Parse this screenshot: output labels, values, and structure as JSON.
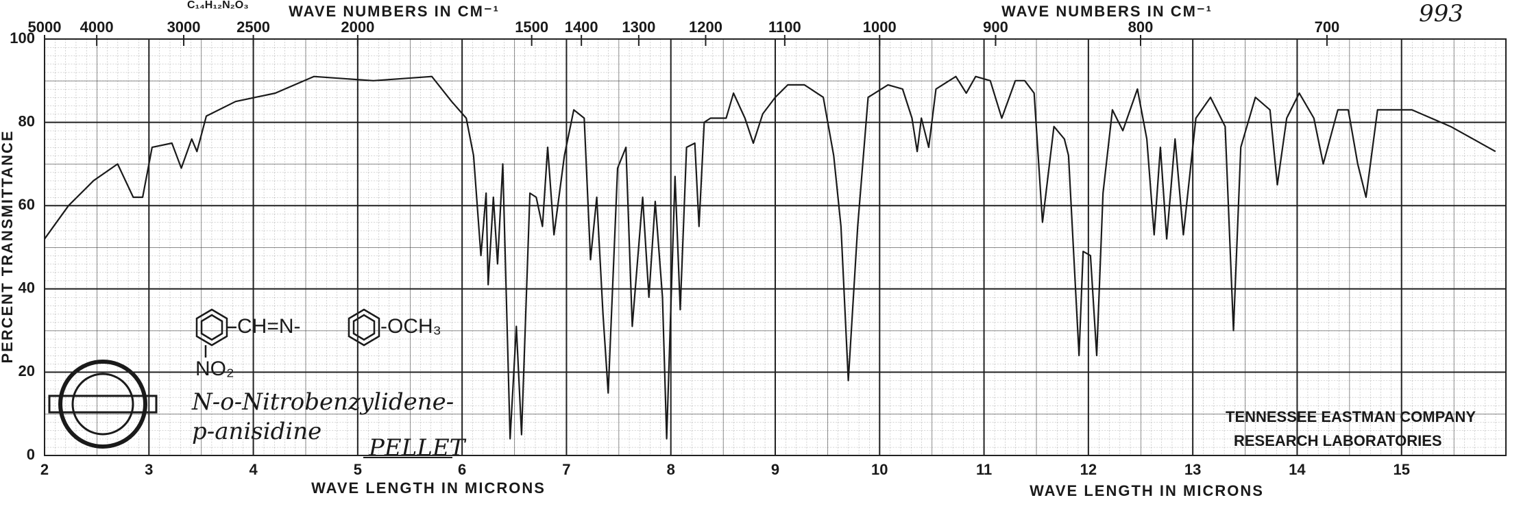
{
  "chart_data": {
    "type": "line",
    "formula": "C₁₄H₁₂N₂O₃",
    "spectrum_number": "993",
    "x2_label_left": "WAVE NUMBERS IN CM⁻¹",
    "x2_label_right": "WAVE NUMBERS IN CM⁻¹",
    "xlabel_left": "WAVE LENGTH IN MICRONS",
    "xlabel_right": "WAVE LENGTH IN MICRONS",
    "ylabel": "PERCENT TRANSMITTANCE",
    "annotations": {
      "structure_link": "CH=N-",
      "structure_tail": "-OCH₃",
      "structure_sub": "NO₂",
      "name_line1": "N-o-Nitrobenzylidene-",
      "name_line2": "p-anisidine",
      "sample": "PELLET",
      "company": "TENNESSEE EASTMAN COMPANY",
      "lab": "RESEARCH LABORATORIES"
    },
    "xlim": [
      2,
      16
    ],
    "xticks": [
      2,
      3,
      4,
      5,
      6,
      7,
      8,
      9,
      10,
      11,
      12,
      13,
      14,
      15
    ],
    "x2ticks": [
      5000,
      4000,
      3000,
      2500,
      2000,
      1500,
      1400,
      1300,
      1200,
      1100,
      1000,
      900,
      800,
      700
    ],
    "ylim": [
      0,
      100
    ],
    "yticks": [
      0,
      20,
      40,
      60,
      80,
      100
    ],
    "grid": true,
    "series": [
      {
        "color": "#1a1a1a",
        "x": [
          2.0,
          2.23,
          2.47,
          2.7,
          2.85,
          2.94,
          3.03,
          3.22,
          3.31,
          3.41,
          3.46,
          3.55,
          3.83,
          4.21,
          4.58,
          5.15,
          5.71,
          5.9,
          6.04,
          6.11,
          6.18,
          6.23,
          6.25,
          6.3,
          6.34,
          6.39,
          6.46,
          6.52,
          6.57,
          6.65,
          6.71,
          6.77,
          6.82,
          6.88,
          6.98,
          7.07,
          7.17,
          7.23,
          7.29,
          7.35,
          7.4,
          7.49,
          7.57,
          7.63,
          7.73,
          7.79,
          7.85,
          7.92,
          7.96,
          8.04,
          8.09,
          8.15,
          8.23,
          8.27,
          8.32,
          8.38,
          8.53,
          8.6,
          8.71,
          8.79,
          8.88,
          9.0,
          9.12,
          9.28,
          9.46,
          9.56,
          9.63,
          9.7,
          9.79,
          9.89,
          10.08,
          10.22,
          10.31,
          10.36,
          10.4,
          10.47,
          10.54,
          10.73,
          10.83,
          10.92,
          11.06,
          11.17,
          11.3,
          11.39,
          11.48,
          11.56,
          11.67,
          11.77,
          11.81,
          11.91,
          11.95,
          12.02,
          12.08,
          12.14,
          12.23,
          12.33,
          12.47,
          12.56,
          12.63,
          12.69,
          12.75,
          12.83,
          12.91,
          13.03,
          13.17,
          13.31,
          13.39,
          13.46,
          13.6,
          13.74,
          13.81,
          13.9,
          14.02,
          14.16,
          14.25,
          14.39,
          14.49,
          14.58,
          14.66,
          14.77,
          15.1,
          15.47,
          15.9
        ],
        "values": [
          52,
          60,
          66,
          70,
          62,
          62,
          74,
          75,
          69,
          76,
          73,
          81.5,
          85,
          87,
          91,
          90,
          91,
          85,
          81,
          72,
          48,
          63,
          41,
          62,
          46,
          70,
          4,
          31,
          5,
          63,
          62,
          55,
          74,
          53,
          72,
          83,
          81,
          47,
          62,
          34,
          15,
          69,
          74,
          31,
          62,
          38,
          61,
          38,
          4,
          67,
          35,
          74,
          75,
          55,
          80,
          81,
          81,
          87,
          81,
          75,
          82,
          86,
          89,
          89,
          86,
          72,
          55,
          18,
          55,
          86,
          89,
          88,
          81,
          73,
          81,
          74,
          88,
          91,
          87,
          91,
          90,
          81,
          90,
          90,
          87,
          56,
          79,
          76,
          72,
          24,
          49,
          48,
          24,
          63,
          83,
          78,
          88,
          76,
          53,
          74,
          52,
          76,
          53,
          81,
          86,
          79,
          30,
          74,
          86,
          83,
          65,
          81,
          87,
          81,
          70,
          83,
          83,
          70,
          62,
          83,
          83,
          79,
          73
        ]
      }
    ]
  }
}
